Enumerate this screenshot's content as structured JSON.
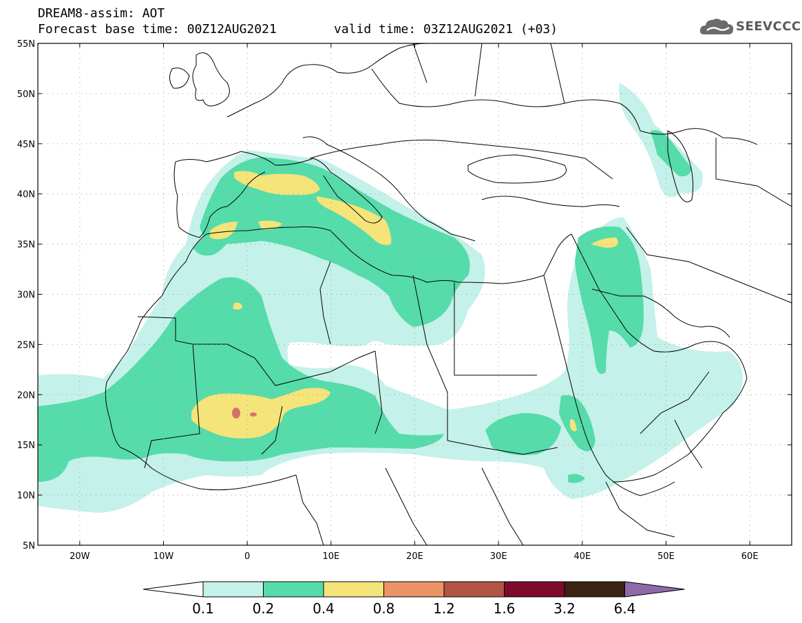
{
  "header": {
    "title_line1": "DREAM8-assim: AOT",
    "base_time": "Forecast base time: 00Z12AUG2021",
    "valid_time": "valid time: 03Z12AUG2021 (+03)"
  },
  "logo": {
    "text": "SEEVCCC",
    "icon": "cloud-icon"
  },
  "map": {
    "lat_labels": [
      "55N",
      "50N",
      "45N",
      "40N",
      "35N",
      "30N",
      "25N",
      "20N",
      "15N",
      "10N",
      "5N"
    ],
    "lon_labels": [
      "20W",
      "10W",
      "0",
      "10E",
      "20E",
      "30E",
      "40E",
      "50E",
      "60E"
    ],
    "lat_range": [
      5,
      55
    ],
    "lon_range": [
      -25,
      65
    ],
    "lat_ticks": [
      55,
      50,
      45,
      40,
      35,
      30,
      25,
      20,
      15,
      10,
      5
    ],
    "lon_ticks": [
      -20,
      -10,
      0,
      10,
      20,
      30,
      40,
      50,
      60
    ],
    "grid": "dotted"
  },
  "colorbar": {
    "labels": [
      "0.1",
      "0.2",
      "0.4",
      "0.8",
      "1.2",
      "1.6",
      "3.2",
      "6.4"
    ],
    "colors": [
      "#c4f1e9",
      "#56dbaa",
      "#f4e479",
      "#ea9468",
      "#b25445",
      "#7e0a2c",
      "#3b2314",
      "#8f6aa8"
    ],
    "low_color": "#ffffff"
  },
  "colors": {
    "level1": "#c4f1e9",
    "level2": "#56dbaa",
    "level3": "#f4e479",
    "level4": "#ea9468",
    "level5": "#d4736a"
  }
}
